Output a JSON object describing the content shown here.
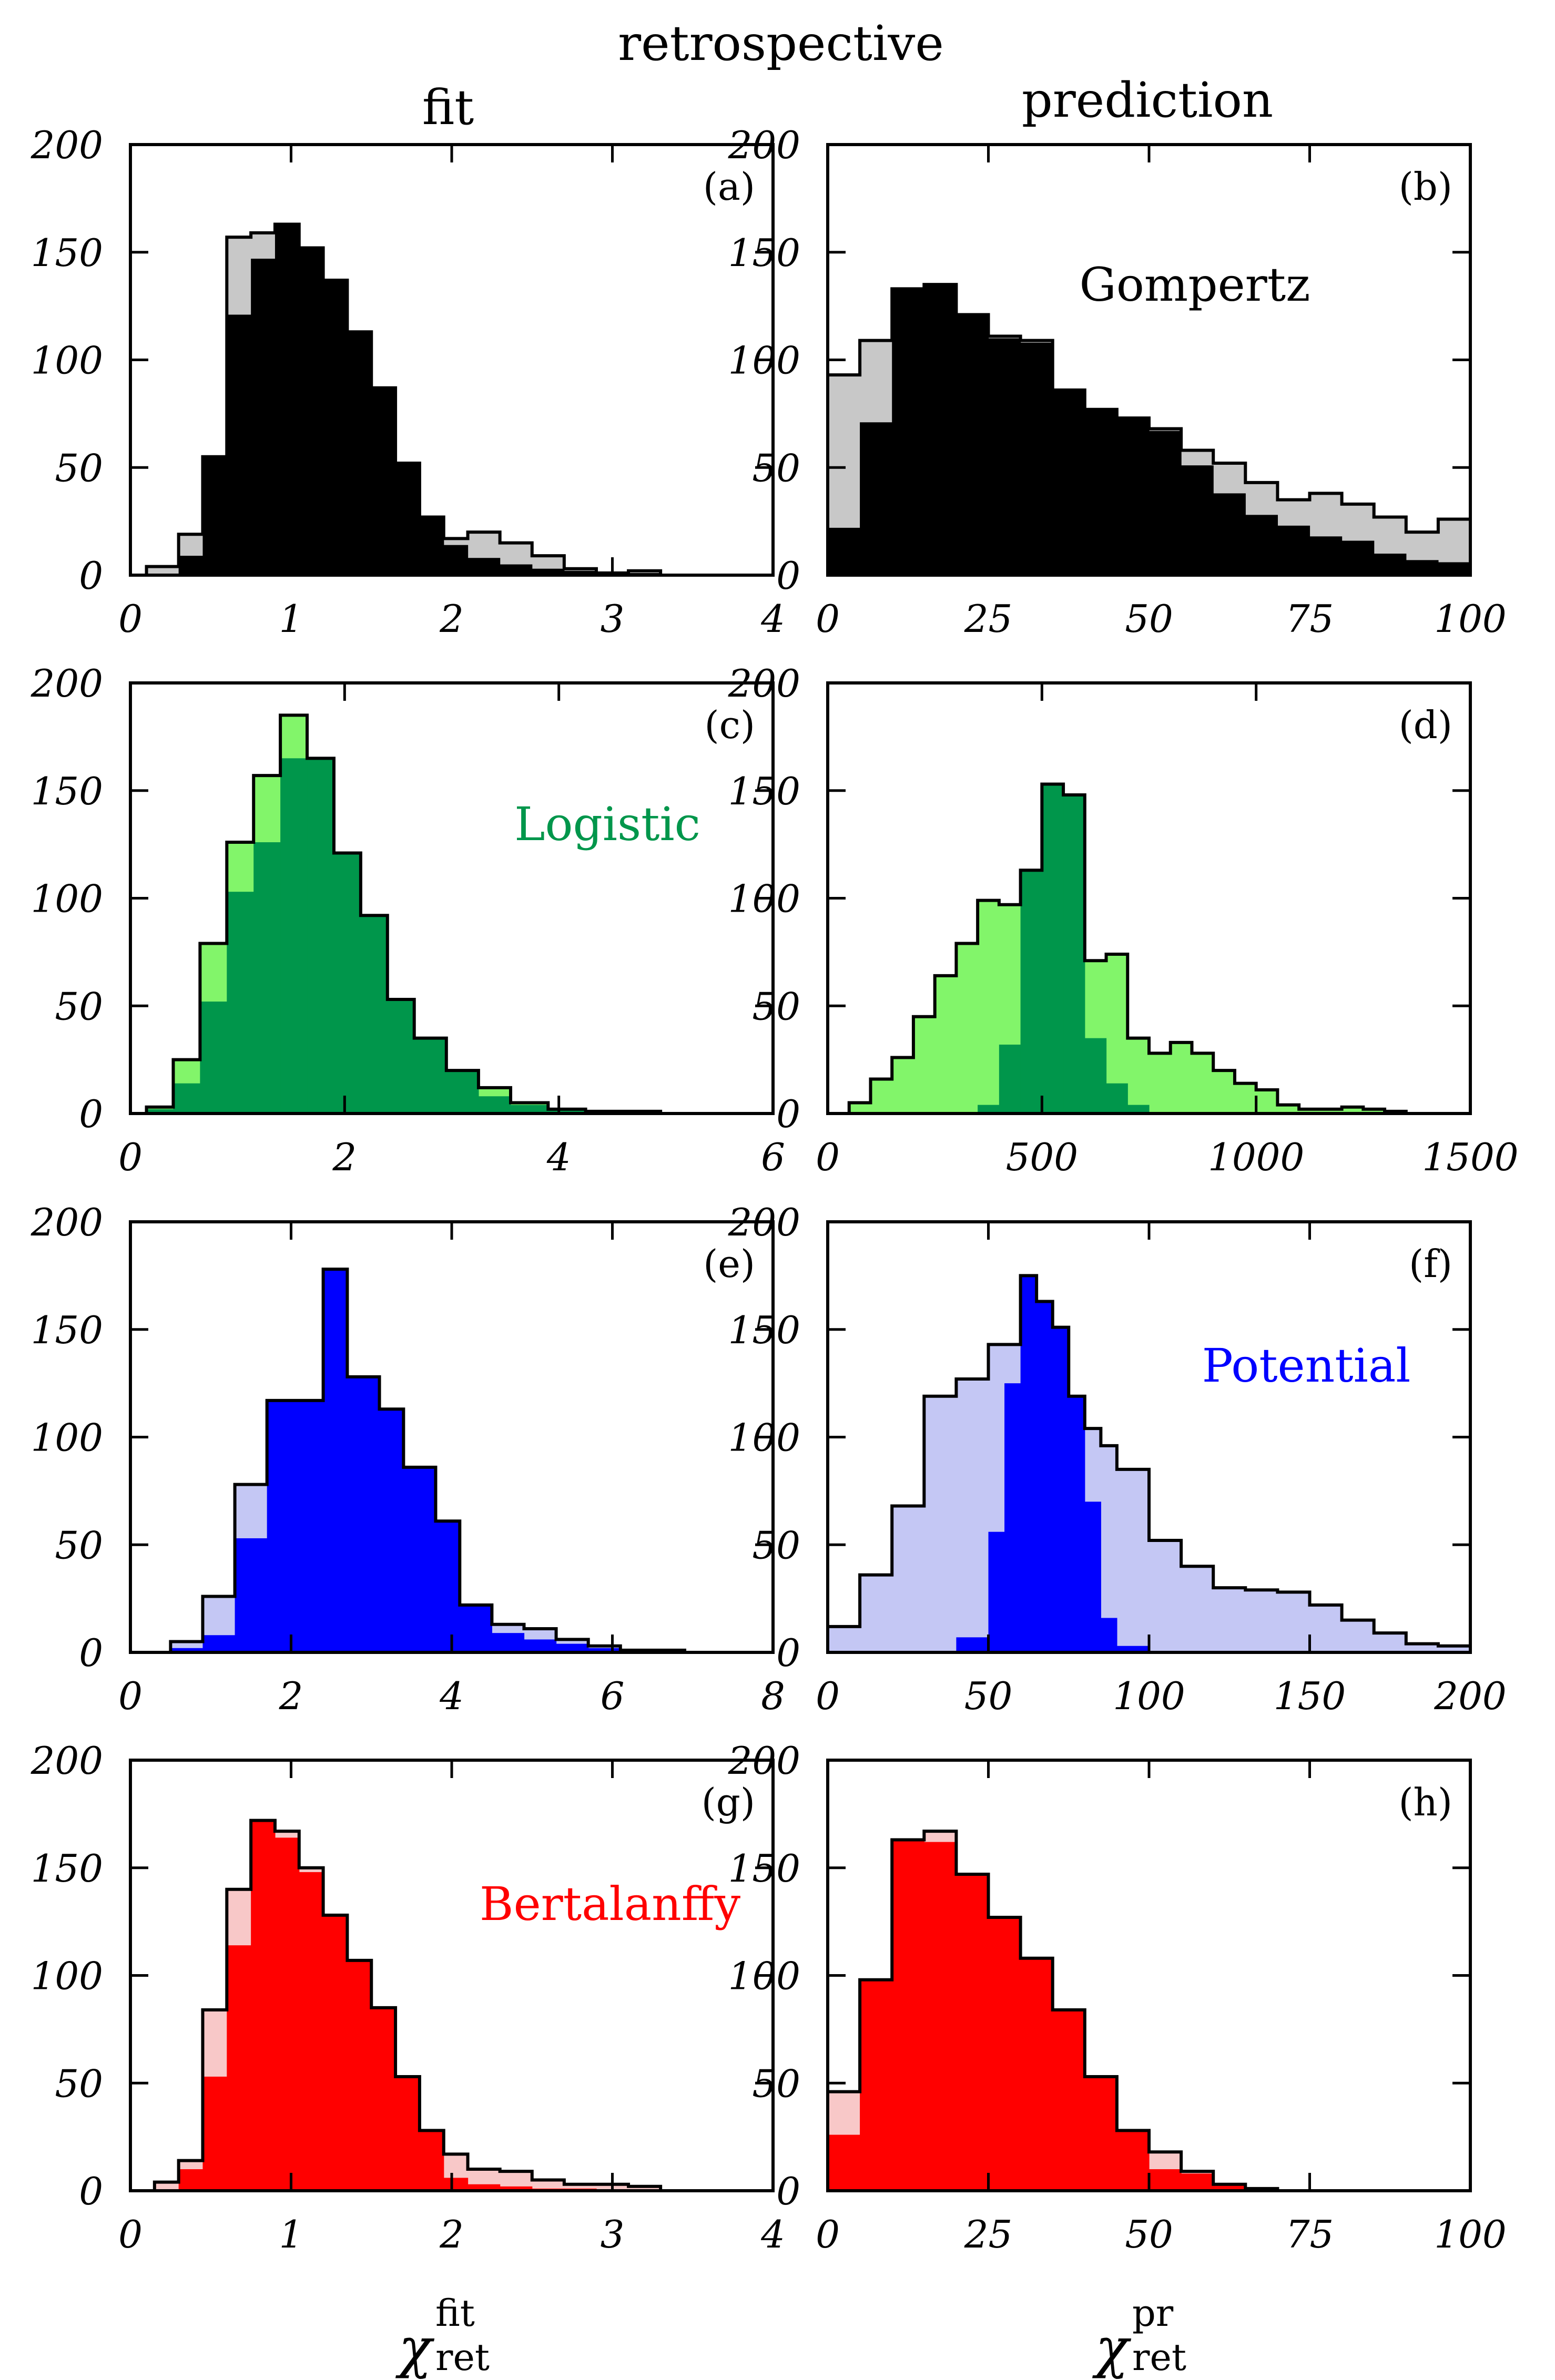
{
  "figure": {
    "title": "retrospective",
    "col_fit": "fit",
    "col_pred": "prediction",
    "xlabel_fit": {
      "sym": "χ",
      "sup": "fit",
      "sub": "ret"
    },
    "xlabel_pred": {
      "sym": "χ",
      "sup": "pr",
      "sub": "ret"
    }
  },
  "chart_data": [
    {
      "type": "histogram",
      "panel": "(a)",
      "model": "Gompertz",
      "column": "fit",
      "bar_color": "#000000",
      "shadow_color": "#c8c8c8",
      "xlim": [
        0,
        4
      ],
      "ylim": [
        0,
        200
      ],
      "xticks": [
        0,
        1,
        2,
        3,
        4
      ],
      "xtick_labels": [
        "0",
        "1",
        "2",
        "3",
        "4"
      ],
      "yticks": [
        0,
        50,
        100,
        150,
        200
      ],
      "ytick_labels": [
        "0",
        "50",
        "100",
        "150",
        "200"
      ],
      "bin_edges": [
        0.1,
        0.3,
        0.45,
        0.6,
        0.75,
        0.9,
        1.05,
        1.2,
        1.35,
        1.5,
        1.65,
        1.8,
        1.95,
        2.1,
        2.3,
        2.5,
        2.7,
        2.9,
        3.1,
        3.3,
        3.5
      ],
      "series": [
        {
          "name": "shadow",
          "values": [
            4,
            19,
            39,
            157,
            159,
            161,
            150,
            137,
            113,
            87,
            52,
            27,
            17,
            20,
            15,
            9,
            3,
            1,
            2,
            0
          ]
        },
        {
          "name": "main",
          "values": [
            0,
            9,
            55,
            121,
            147,
            163,
            152,
            137,
            113,
            87,
            52,
            27,
            14,
            8,
            5,
            3,
            2,
            1,
            1,
            0
          ]
        }
      ]
    },
    {
      "type": "histogram",
      "panel": "(b)",
      "model": "Gompertz",
      "column": "prediction",
      "bar_color": "#000000",
      "shadow_color": "#c8c8c8",
      "xlim": [
        0,
        100
      ],
      "ylim": [
        0,
        200
      ],
      "xticks": [
        0,
        25,
        50,
        75,
        100
      ],
      "xtick_labels": [
        "0",
        "25",
        "50",
        "75",
        "100"
      ],
      "yticks": [
        0,
        50,
        100,
        150,
        200
      ],
      "ytick_labels": [
        "0",
        "50",
        "100",
        "150",
        "200"
      ],
      "bin_edges": [
        0,
        5,
        10,
        15,
        20,
        25,
        30,
        35,
        40,
        45,
        50,
        55,
        60,
        65,
        70,
        75,
        80,
        85,
        90,
        95,
        100
      ],
      "series": [
        {
          "name": "shadow",
          "values": [
            93,
            109,
            132,
            134,
            120,
            111,
            109,
            86,
            77,
            73,
            68,
            58,
            52,
            43,
            35,
            38,
            33,
            27,
            20,
            26
          ]
        },
        {
          "name": "main",
          "values": [
            22,
            71,
            133,
            135,
            121,
            110,
            108,
            86,
            77,
            73,
            67,
            51,
            38,
            28,
            23,
            18,
            16,
            10,
            7,
            6
          ]
        }
      ]
    },
    {
      "type": "histogram",
      "panel": "(c)",
      "model": "Logistic",
      "column": "fit",
      "bar_color": "#00964b",
      "shadow_color": "#82f56a",
      "xlim": [
        0,
        6
      ],
      "ylim": [
        0,
        200
      ],
      "xticks": [
        0,
        2,
        4,
        6
      ],
      "xtick_labels": [
        "0",
        "2",
        "4",
        "6"
      ],
      "yticks": [
        0,
        50,
        100,
        150,
        200
      ],
      "ytick_labels": [
        "0",
        "50",
        "100",
        "150",
        "200"
      ],
      "bin_edges": [
        0.15,
        0.4,
        0.65,
        0.9,
        1.15,
        1.4,
        1.65,
        1.9,
        2.15,
        2.4,
        2.65,
        2.95,
        3.25,
        3.55,
        3.9,
        4.25,
        4.6,
        4.95,
        5.3
      ],
      "series": [
        {
          "name": "shadow",
          "values": [
            3,
            25,
            79,
            126,
            157,
            185,
            165,
            121,
            92,
            53,
            35,
            20,
            12,
            5,
            2,
            1,
            1,
            0
          ]
        },
        {
          "name": "main",
          "values": [
            2,
            14,
            52,
            103,
            126,
            165,
            165,
            121,
            92,
            53,
            35,
            20,
            8,
            4,
            2,
            1,
            0,
            0
          ]
        }
      ]
    },
    {
      "type": "histogram",
      "panel": "(d)",
      "model": "Logistic",
      "column": "prediction",
      "bar_color": "#00964b",
      "shadow_color": "#82f56a",
      "xlim": [
        0,
        1500
      ],
      "ylim": [
        0,
        200
      ],
      "xticks": [
        0,
        500,
        1000,
        1500
      ],
      "xtick_labels": [
        "0",
        "500",
        "1000",
        "1500"
      ],
      "yticks": [
        0,
        50,
        100,
        150,
        200
      ],
      "ytick_labels": [
        "0",
        "50",
        "100",
        "150",
        "200"
      ],
      "bin_edges": [
        50,
        100,
        150,
        200,
        250,
        300,
        350,
        400,
        450,
        500,
        550,
        600,
        650,
        700,
        750,
        800,
        850,
        900,
        950,
        1000,
        1050,
        1100,
        1150,
        1200,
        1250,
        1300,
        1350
      ],
      "series": [
        {
          "name": "shadow",
          "values": [
            5,
            16,
            26,
            45,
            64,
            79,
            99,
            97,
            110,
            135,
            102,
            71,
            74,
            35,
            28,
            33,
            28,
            20,
            14,
            11,
            4,
            2,
            2,
            3,
            2,
            1
          ]
        },
        {
          "name": "main",
          "values": [
            0,
            0,
            0,
            0,
            0,
            0,
            4,
            32,
            113,
            153,
            148,
            35,
            14,
            4,
            0,
            0,
            0,
            0,
            0,
            0,
            0,
            0,
            0,
            0,
            0,
            0
          ]
        }
      ]
    },
    {
      "type": "histogram",
      "panel": "(e)",
      "model": "Potential",
      "column": "fit",
      "bar_color": "#0000ff",
      "shadow_color": "#c4c7f4",
      "xlim": [
        0,
        8
      ],
      "ylim": [
        0,
        200
      ],
      "xticks": [
        0,
        2,
        4,
        6,
        8
      ],
      "xtick_labels": [
        "0",
        "2",
        "4",
        "6",
        "8"
      ],
      "yticks": [
        0,
        50,
        100,
        150,
        200
      ],
      "ytick_labels": [
        "0",
        "50",
        "100",
        "150",
        "200"
      ],
      "bin_edges": [
        0.5,
        0.9,
        1.3,
        1.7,
        2.1,
        2.4,
        2.7,
        3.1,
        3.4,
        3.8,
        4.1,
        4.5,
        4.9,
        5.3,
        5.7,
        6.1,
        6.5,
        6.9
      ],
      "series": [
        {
          "name": "shadow",
          "values": [
            5,
            26,
            78,
            117,
            117,
            96,
            119,
            86,
            62,
            48,
            22,
            13,
            11,
            6,
            3,
            1,
            1
          ]
        },
        {
          "name": "main",
          "values": [
            2,
            8,
            53,
            117,
            117,
            178,
            128,
            113,
            86,
            61,
            22,
            9,
            6,
            4,
            2,
            1,
            1
          ]
        }
      ]
    },
    {
      "type": "histogram",
      "panel": "(f)",
      "model": "Potential",
      "column": "prediction",
      "bar_color": "#0000ff",
      "shadow_color": "#c4c7f4",
      "xlim": [
        0,
        200
      ],
      "ylim": [
        0,
        200
      ],
      "xticks": [
        0,
        50,
        100,
        150,
        200
      ],
      "xtick_labels": [
        "0",
        "50",
        "100",
        "150",
        "200"
      ],
      "yticks": [
        0,
        50,
        100,
        150,
        200
      ],
      "ytick_labels": [
        "0",
        "50",
        "100",
        "150",
        "200"
      ],
      "bin_edges": [
        0,
        10,
        20,
        30,
        40,
        50,
        55,
        60,
        65,
        70,
        75,
        80,
        85,
        90,
        100,
        110,
        120,
        130,
        140,
        150,
        160,
        170,
        180,
        190,
        200
      ],
      "series": [
        {
          "name": "shadow",
          "values": [
            12,
            36,
            68,
            119,
            127,
            143,
            143,
            142,
            133,
            114,
            104,
            104,
            96,
            85,
            52,
            40,
            30,
            29,
            28,
            22,
            15,
            9,
            4,
            3
          ]
        },
        {
          "name": "main",
          "values": [
            0,
            0,
            0,
            0,
            7,
            56,
            125,
            175,
            163,
            151,
            119,
            70,
            16,
            3,
            0,
            0,
            0,
            0,
            0,
            0,
            0,
            0,
            0,
            0
          ]
        }
      ]
    },
    {
      "type": "histogram",
      "panel": "(g)",
      "model": "Bertalanffy",
      "column": "fit",
      "bar_color": "#ff0000",
      "shadow_color": "#f8c8c8",
      "xlim": [
        0,
        4
      ],
      "ylim": [
        0,
        200
      ],
      "xticks": [
        0,
        1,
        2,
        3,
        4
      ],
      "xtick_labels": [
        "0",
        "1",
        "2",
        "3",
        "4"
      ],
      "yticks": [
        0,
        50,
        100,
        150,
        200
      ],
      "ytick_labels": [
        "0",
        "50",
        "100",
        "150",
        "200"
      ],
      "bin_edges": [
        0.15,
        0.3,
        0.45,
        0.6,
        0.75,
        0.9,
        1.05,
        1.2,
        1.35,
        1.5,
        1.65,
        1.8,
        1.95,
        2.1,
        2.3,
        2.5,
        2.7,
        2.9,
        3.1,
        3.3
      ],
      "series": [
        {
          "name": "shadow",
          "values": [
            4,
            14,
            84,
            140,
            172,
            167,
            150,
            128,
            107,
            85,
            53,
            28,
            17,
            10,
            9,
            5,
            3,
            3,
            2
          ]
        },
        {
          "name": "main",
          "values": [
            0,
            10,
            53,
            114,
            172,
            164,
            148,
            128,
            107,
            85,
            53,
            28,
            6,
            3,
            2,
            1,
            1,
            0,
            0
          ]
        }
      ]
    },
    {
      "type": "histogram",
      "panel": "(h)",
      "model": "Bertalanffy",
      "column": "prediction",
      "bar_color": "#ff0000",
      "shadow_color": "#f8c8c8",
      "xlim": [
        0,
        100
      ],
      "ylim": [
        0,
        200
      ],
      "xticks": [
        0,
        25,
        50,
        75,
        100
      ],
      "xtick_labels": [
        "0",
        "25",
        "50",
        "75",
        "100"
      ],
      "yticks": [
        0,
        50,
        100,
        150,
        200
      ],
      "ytick_labels": [
        "0",
        "50",
        "100",
        "150",
        "200"
      ],
      "bin_edges": [
        0,
        5,
        10,
        15,
        20,
        25,
        30,
        35,
        40,
        45,
        50,
        55,
        60,
        65,
        70,
        75
      ],
      "series": [
        {
          "name": "shadow",
          "values": [
            46,
            98,
            163,
            167,
            147,
            127,
            108,
            84,
            53,
            28,
            18,
            9,
            3,
            1,
            0
          ]
        },
        {
          "name": "main",
          "values": [
            26,
            98,
            163,
            162,
            147,
            127,
            108,
            84,
            53,
            28,
            10,
            8,
            3,
            1,
            0
          ]
        }
      ]
    }
  ]
}
